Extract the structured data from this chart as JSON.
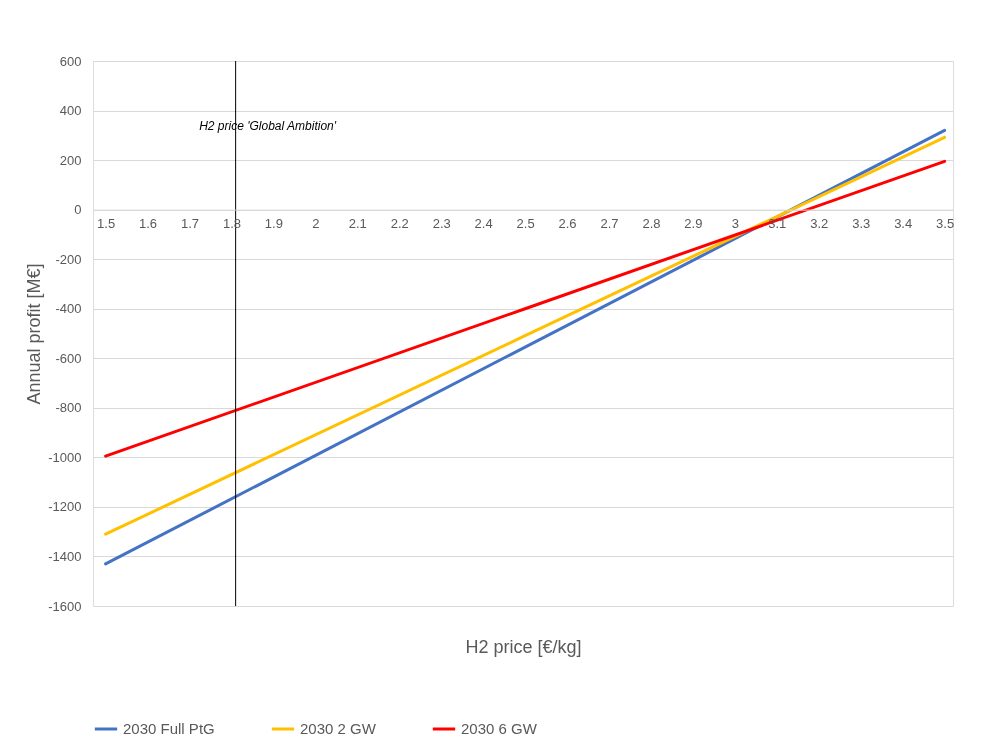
{
  "chart_data": {
    "type": "line",
    "xlabel": "H2 price [€/kg]",
    "ylabel": "Annual profit [M€]",
    "x": [
      1.5,
      2.5,
      3.5
    ],
    "series": [
      {
        "name": "2030 Full PtG",
        "color": "#4472c4",
        "values": [
          -1430,
          -555,
          320
        ]
      },
      {
        "name": "2030 2 GW",
        "color": "#ffc000",
        "values": [
          -1310,
          -509,
          292
        ]
      },
      {
        "name": "2030 6 GW",
        "color": "#ff0000",
        "values": [
          -995,
          -400,
          195
        ]
      }
    ],
    "xlim": [
      1.47,
      3.52
    ],
    "xticks": [
      1.5,
      1.6,
      1.7,
      1.8,
      1.9,
      2,
      2.1,
      2.2,
      2.3,
      2.4,
      2.5,
      2.6,
      2.7,
      2.8,
      2.9,
      3,
      3.1,
      3.2,
      3.3,
      3.4,
      3.5
    ],
    "ylim": [
      -1600,
      600
    ],
    "yticks": [
      -1600,
      -1400,
      -1200,
      -1000,
      -800,
      -600,
      -400,
      -200,
      0,
      200,
      400,
      600
    ],
    "ref_lines": [
      {
        "axis": "x",
        "value": 1.81,
        "label": "H2 price  'Global Ambition'",
        "color": "#000000"
      }
    ],
    "grid": "y",
    "legend": "bottom",
    "marker": "none",
    "line_style": "solid"
  }
}
